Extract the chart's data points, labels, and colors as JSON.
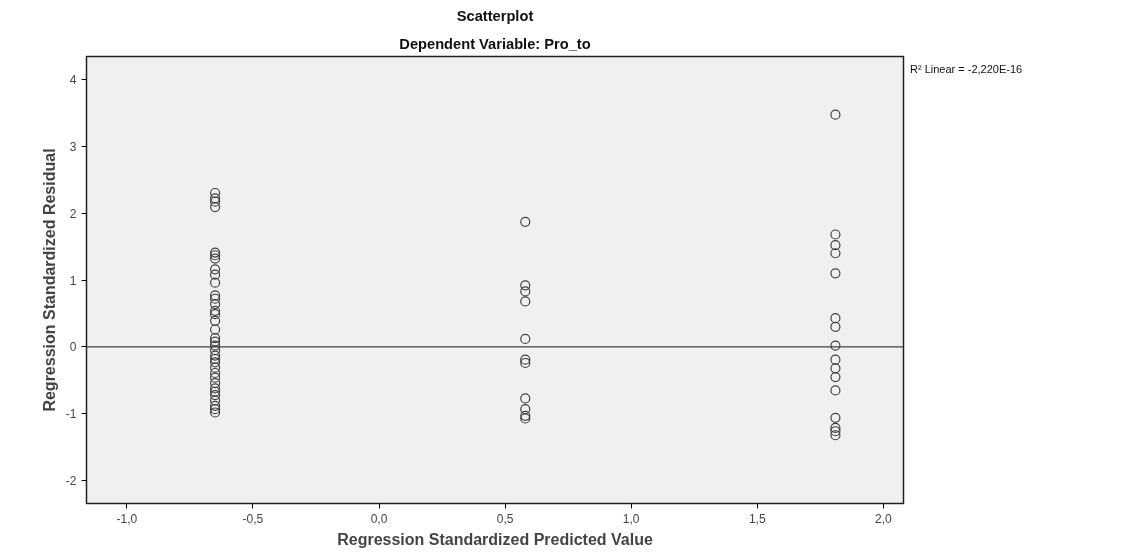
{
  "chart_data": {
    "type": "scatter",
    "title": "Scatterplot",
    "subtitle": "Dependent Variable: Pro_to",
    "xlabel": "Regression Standardized Predicted Value",
    "ylabel": "Regression Standardized Residual",
    "xlim": [
      -1.16,
      2.08
    ],
    "xticks": [
      {
        "value": -1,
        "label": "-1,0"
      },
      {
        "value": -0.5,
        "label": "-0,5"
      },
      {
        "value": 0,
        "label": "0,0"
      },
      {
        "value": 0.5,
        "label": "0,5"
      },
      {
        "value": 1,
        "label": "1,0"
      },
      {
        "value": 1.5,
        "label": "1,5"
      },
      {
        "value": 2,
        "label": "2,0"
      }
    ],
    "ylim": [
      -2.34,
      4.34
    ],
    "yticks": [
      -2,
      -1,
      0,
      1,
      2,
      3,
      4
    ],
    "grid": false,
    "legend": false,
    "series": [
      {
        "marker": "circle",
        "color": "#404040",
        "x": [
          -0.65,
          -0.65,
          -0.65,
          -0.65,
          -0.65,
          -0.65,
          -0.65,
          -0.65,
          -0.65,
          -0.65,
          -0.65,
          -0.65,
          -0.65,
          -0.65,
          -0.65,
          -0.65,
          -0.65,
          -0.65,
          -0.65,
          -0.65,
          -0.65,
          -0.65,
          -0.65,
          -0.65,
          -0.65,
          -0.65,
          -0.65,
          -0.65,
          -0.65,
          -0.65,
          -0.65,
          -0.65,
          -0.65,
          -0.65,
          -0.65,
          0.58,
          0.58,
          0.58,
          0.58,
          0.58,
          0.58,
          0.58,
          0.58,
          0.58,
          0.58,
          0.58,
          1.81,
          1.81,
          1.81,
          1.81,
          1.81,
          1.81,
          1.81,
          1.81,
          1.81,
          1.81,
          1.81,
          1.81,
          1.81,
          1.81,
          1.81,
          1.81
        ],
        "values": [
          2.3,
          2.22,
          2.17,
          2.09,
          1.41,
          1.37,
          1.32,
          1.16,
          1.08,
          0.96,
          0.77,
          0.72,
          0.64,
          0.54,
          0.49,
          0.39,
          0.26,
          0.13,
          0.08,
          0.02,
          -0.05,
          -0.13,
          -0.18,
          -0.23,
          -0.31,
          -0.39,
          -0.46,
          -0.54,
          -0.62,
          -0.67,
          -0.72,
          -0.8,
          -0.88,
          -0.93,
          -0.98,
          1.87,
          0.92,
          0.83,
          0.68,
          0.12,
          -0.19,
          -0.24,
          -0.77,
          -0.93,
          -1.03,
          -1.07,
          3.47,
          1.68,
          1.52,
          1.4,
          1.1,
          0.43,
          0.3,
          0.02,
          -0.19,
          -0.32,
          -0.45,
          -0.65,
          -1.06,
          -1.21,
          -1.26,
          -1.32
        ]
      },
      {
        "type": "line",
        "name": "R² Linear = -2,220E-16",
        "color": "#404040",
        "x": [
          -1.16,
          2.08
        ],
        "values": [
          0,
          0
        ]
      }
    ]
  }
}
